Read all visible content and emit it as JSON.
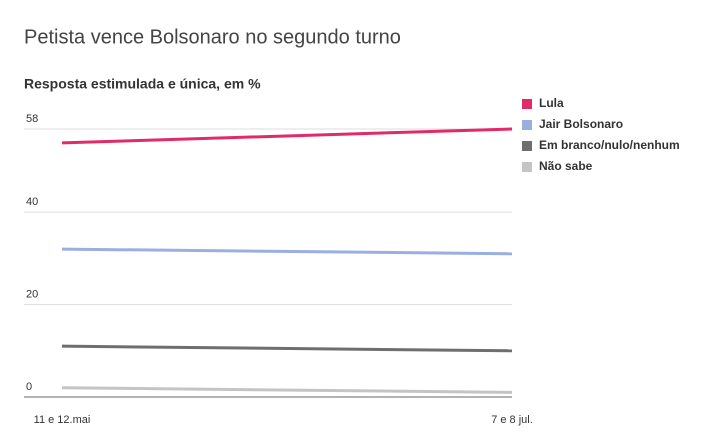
{
  "chart_data": {
    "type": "line",
    "title": "Petista vence Bolsonaro no segundo turno",
    "subtitle": "Resposta estimulada e única, em %",
    "categories": [
      "11 e 12.mai",
      "7 e 8 jul."
    ],
    "series": [
      {
        "name": "Lula",
        "color": "#e02a6a",
        "values": [
          55,
          58
        ]
      },
      {
        "name": "Jair Bolsonaro",
        "color": "#9aaee0",
        "values": [
          32,
          31
        ]
      },
      {
        "name": "Em branco/nulo/nenhum",
        "color": "#6e6e6e",
        "values": [
          11,
          10
        ]
      },
      {
        "name": "Não sabe",
        "color": "#c4c4c4",
        "values": [
          2,
          1
        ]
      }
    ],
    "ylim": [
      0,
      58
    ],
    "yticks": [
      0,
      20,
      40,
      58
    ],
    "grid": true
  }
}
